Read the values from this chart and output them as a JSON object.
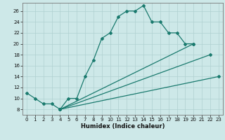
{
  "xlabel": "Humidex (Indice chaleur)",
  "bg_color": "#cde8e8",
  "line_color": "#1a7a6e",
  "grid_color": "#b0d0d0",
  "xlim": [
    -0.5,
    23.5
  ],
  "ylim": [
    7,
    27.5
  ],
  "xticks": [
    0,
    1,
    2,
    3,
    4,
    5,
    6,
    7,
    8,
    9,
    10,
    11,
    12,
    13,
    14,
    15,
    16,
    17,
    18,
    19,
    20,
    21,
    22,
    23
  ],
  "yticks": [
    8,
    10,
    12,
    14,
    16,
    18,
    20,
    22,
    24,
    26
  ],
  "main_x": [
    0,
    1,
    2,
    3,
    4,
    5,
    6,
    7,
    8,
    9,
    10,
    11,
    12,
    13,
    14,
    15,
    16,
    17,
    18,
    19,
    20
  ],
  "main_y": [
    11,
    10,
    9,
    9,
    8,
    10,
    10,
    14,
    17,
    21,
    22,
    25,
    26,
    26,
    27,
    24,
    24,
    22,
    22,
    20,
    20
  ],
  "line1_x": [
    4,
    22
  ],
  "line1_y": [
    8,
    18
  ],
  "line2_x": [
    4,
    23
  ],
  "line2_y": [
    8,
    14
  ],
  "line3_x": [
    4,
    20
  ],
  "line3_y": [
    8,
    20
  ],
  "tick_fontsize": 5.0,
  "xlabel_fontsize": 6.0,
  "marker_size": 2.0,
  "linewidth": 0.9
}
